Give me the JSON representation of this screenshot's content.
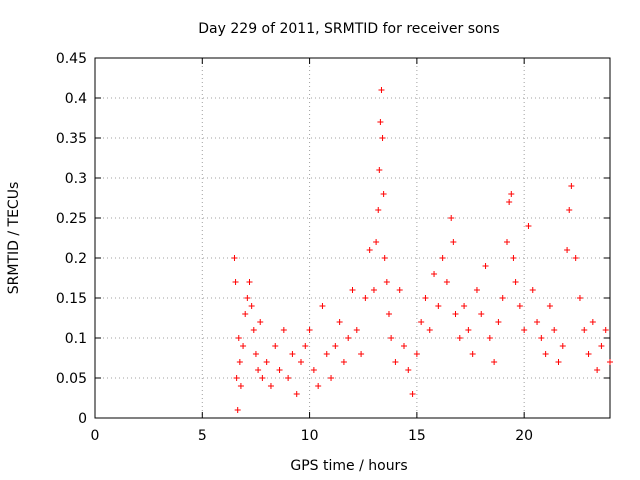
{
  "chart_data": {
    "type": "scatter",
    "title": "Day 229 of 2011, SRMTID for receiver sons",
    "xlabel": "GPS time / hours",
    "ylabel": "SRMTID / TECUs",
    "xlim": [
      0,
      24
    ],
    "ylim": [
      0,
      0.45
    ],
    "xticks": [
      0,
      5,
      10,
      15,
      20
    ],
    "xtick_labels": [
      "0",
      "5",
      "10",
      "15",
      "20"
    ],
    "yticks": [
      0,
      0.05,
      0.1,
      0.15,
      0.2,
      0.25,
      0.3,
      0.35,
      0.4,
      0.45
    ],
    "ytick_labels": [
      "0",
      "0.05",
      "0.1",
      "0.15",
      "0.2",
      "0.25",
      "0.3",
      "0.35",
      "0.4",
      "0.45"
    ],
    "grid": true,
    "marker": "+",
    "color": "#ff0000",
    "series": [
      {
        "name": "SRMTID",
        "x": [
          6.5,
          6.55,
          6.6,
          6.65,
          6.7,
          6.75,
          6.8,
          6.9,
          7.0,
          7.1,
          7.2,
          7.3,
          7.4,
          7.5,
          7.6,
          7.7,
          7.8,
          8.0,
          8.2,
          8.4,
          8.6,
          8.8,
          9.0,
          9.2,
          9.4,
          9.6,
          9.8,
          10.0,
          10.2,
          10.4,
          10.6,
          10.8,
          11.0,
          11.2,
          11.4,
          11.6,
          11.8,
          12.0,
          12.2,
          12.4,
          12.6,
          12.8,
          13.0,
          13.1,
          13.2,
          13.25,
          13.3,
          13.35,
          13.4,
          13.45,
          13.5,
          13.6,
          13.7,
          13.8,
          14.0,
          14.2,
          14.4,
          14.6,
          14.8,
          15.0,
          15.2,
          15.4,
          15.6,
          15.8,
          16.0,
          16.2,
          16.4,
          16.6,
          16.7,
          16.8,
          17.0,
          17.2,
          17.4,
          17.6,
          17.8,
          18.0,
          18.2,
          18.4,
          18.6,
          18.8,
          19.0,
          19.2,
          19.3,
          19.4,
          19.5,
          19.6,
          19.8,
          20.0,
          20.2,
          20.4,
          20.6,
          20.8,
          21.0,
          21.2,
          21.4,
          21.6,
          21.8,
          22.0,
          22.1,
          22.2,
          22.4,
          22.6,
          22.8,
          23.0,
          23.2,
          23.4,
          23.6,
          23.8,
          24.0
        ],
        "y": [
          0.2,
          0.17,
          0.05,
          0.01,
          0.1,
          0.07,
          0.04,
          0.09,
          0.13,
          0.15,
          0.17,
          0.14,
          0.11,
          0.08,
          0.06,
          0.12,
          0.05,
          0.07,
          0.04,
          0.09,
          0.06,
          0.11,
          0.05,
          0.08,
          0.03,
          0.07,
          0.09,
          0.11,
          0.06,
          0.04,
          0.14,
          0.08,
          0.05,
          0.09,
          0.12,
          0.07,
          0.1,
          0.16,
          0.11,
          0.08,
          0.15,
          0.21,
          0.16,
          0.22,
          0.26,
          0.31,
          0.37,
          0.41,
          0.35,
          0.28,
          0.2,
          0.17,
          0.13,
          0.1,
          0.07,
          0.16,
          0.09,
          0.06,
          0.03,
          0.08,
          0.12,
          0.15,
          0.11,
          0.18,
          0.14,
          0.2,
          0.17,
          0.25,
          0.22,
          0.13,
          0.1,
          0.14,
          0.11,
          0.08,
          0.16,
          0.13,
          0.19,
          0.1,
          0.07,
          0.12,
          0.15,
          0.22,
          0.27,
          0.28,
          0.2,
          0.17,
          0.14,
          0.11,
          0.24,
          0.16,
          0.12,
          0.1,
          0.08,
          0.14,
          0.11,
          0.07,
          0.09,
          0.21,
          0.26,
          0.29,
          0.2,
          0.15,
          0.11,
          0.08,
          0.12,
          0.06,
          0.09,
          0.11,
          0.07
        ]
      }
    ]
  }
}
